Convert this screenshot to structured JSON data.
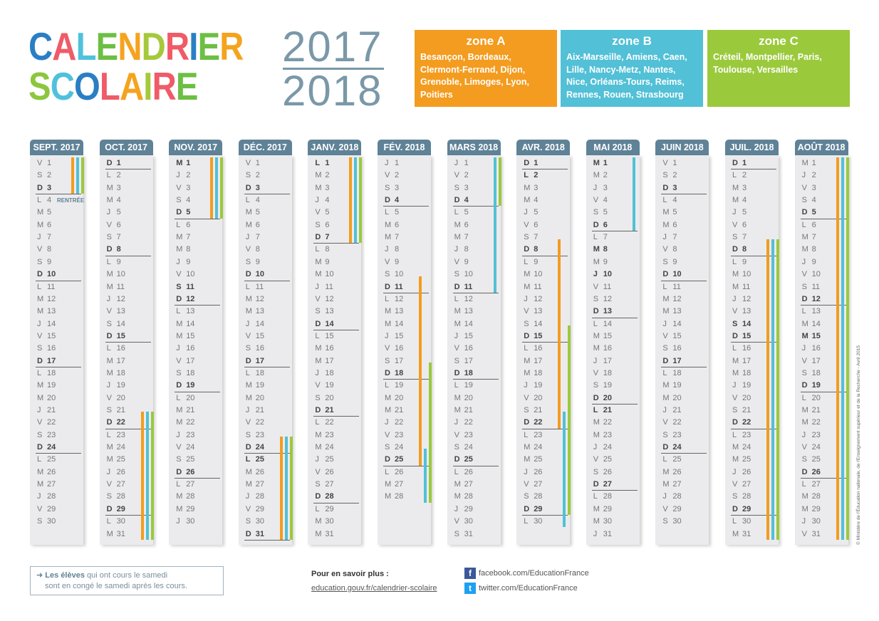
{
  "title": {
    "line1": "CALENDRIER",
    "line2": "SCOLAIRE",
    "line1_colors": [
      "#2a7fc4",
      "#ef5b68",
      "#4fc1dc",
      "#6cbf44",
      "#f5a31f",
      "#a5c93b",
      "#ef5b68",
      "#2a7fc4",
      "#6cbf44",
      "#f5a31f"
    ],
    "line2_colors": [
      "#8cc63e",
      "#4fc1dc",
      "#2a7fc4",
      "#ef5b68",
      "#f5a31f",
      "#a5c93b",
      "#ef5b68",
      "#6cbf44"
    ],
    "year1": "2017",
    "year2": "2018"
  },
  "zones": [
    {
      "name": "zone A",
      "cities": "Besançon, Bordeaux, Clermont-Ferrand, Dijon, Grenoble, Limoges, Lyon, Poitiers",
      "color": "#f39c1f"
    },
    {
      "name": "zone B",
      "cities": "Aix-Marseille, Amiens, Caen, Lille, Nancy-Metz, Nantes, Nice, Orléans-Tours, Reims, Rennes, Rouen, Strasbourg",
      "color": "#52c0d6"
    },
    {
      "name": "zone C",
      "cities": "Créteil, Montpellier, Paris, Toulouse, Versailles",
      "color": "#9bc93c"
    }
  ],
  "weekdays": [
    "L",
    "M",
    "M",
    "J",
    "V",
    "S",
    "D"
  ],
  "rentree_label": "RENTRÉE",
  "months": [
    {
      "label": "SEPT. 2017",
      "start": 4,
      "days": 30,
      "holidays": [],
      "rentree": 4,
      "vacations": [
        {
          "zone": "A",
          "from": 1,
          "to": 3
        },
        {
          "zone": "B",
          "from": 1,
          "to": 3
        },
        {
          "zone": "C",
          "from": 1,
          "to": 3
        }
      ]
    },
    {
      "label": "OCT. 2017",
      "start": 6,
      "days": 31,
      "holidays": [],
      "vacations": [
        {
          "zone": "A",
          "from": 21,
          "to": 31
        },
        {
          "zone": "B",
          "from": 21,
          "to": 31
        },
        {
          "zone": "C",
          "from": 21,
          "to": 31
        }
      ]
    },
    {
      "label": "NOV. 2017",
      "start": 2,
      "days": 30,
      "holidays": [
        1,
        11
      ],
      "vacations": [
        {
          "zone": "A",
          "from": 1,
          "to": 5
        },
        {
          "zone": "B",
          "from": 1,
          "to": 5
        },
        {
          "zone": "C",
          "from": 1,
          "to": 5
        }
      ]
    },
    {
      "label": "DÉC. 2017",
      "start": 4,
      "days": 31,
      "holidays": [
        25
      ],
      "vacations": [
        {
          "zone": "A",
          "from": 23,
          "to": 31
        },
        {
          "zone": "B",
          "from": 23,
          "to": 31
        },
        {
          "zone": "C",
          "from": 23,
          "to": 31
        }
      ]
    },
    {
      "label": "JANV. 2018",
      "start": 0,
      "days": 31,
      "holidays": [
        1
      ],
      "vacations": [
        {
          "zone": "A",
          "from": 1,
          "to": 7
        },
        {
          "zone": "B",
          "from": 1,
          "to": 7
        },
        {
          "zone": "C",
          "from": 1,
          "to": 7
        }
      ]
    },
    {
      "label": "FÉV. 2018",
      "start": 3,
      "days": 28,
      "holidays": [],
      "vacations": [
        {
          "zone": "A",
          "from": 10,
          "to": 25
        },
        {
          "zone": "B",
          "from": 24,
          "to": 28
        },
        {
          "zone": "C",
          "from": 17,
          "to": 28
        }
      ]
    },
    {
      "label": "MARS 2018",
      "start": 3,
      "days": 31,
      "holidays": [],
      "vacations": [
        {
          "zone": "B",
          "from": 1,
          "to": 11
        },
        {
          "zone": "C",
          "from": 1,
          "to": 4
        }
      ]
    },
    {
      "label": "AVR. 2018",
      "start": 6,
      "days": 30,
      "holidays": [
        2
      ],
      "vacations": [
        {
          "zone": "A",
          "from": 7,
          "to": 22
        },
        {
          "zone": "B",
          "from": 21,
          "to": 30
        },
        {
          "zone": "C",
          "from": 14,
          "to": 29
        }
      ]
    },
    {
      "label": "MAI 2018",
      "start": 1,
      "days": 31,
      "holidays": [
        1,
        8,
        10,
        21
      ],
      "vacations": [
        {
          "zone": "B",
          "from": 1,
          "to": 6
        }
      ]
    },
    {
      "label": "JUIN 2018",
      "start": 4,
      "days": 30,
      "holidays": [],
      "vacations": []
    },
    {
      "label": "JUIL. 2018",
      "start": 6,
      "days": 31,
      "holidays": [
        14
      ],
      "vacations": [
        {
          "zone": "A",
          "from": 7,
          "to": 31
        },
        {
          "zone": "B",
          "from": 7,
          "to": 31
        },
        {
          "zone": "C",
          "from": 7,
          "to": 31
        }
      ]
    },
    {
      "label": "AOÛT 2018",
      "start": 2,
      "days": 31,
      "holidays": [
        15
      ],
      "vacations": [
        {
          "zone": "A",
          "from": 1,
          "to": 31
        },
        {
          "zone": "B",
          "from": 1,
          "to": 31
        },
        {
          "zone": "C",
          "from": 1,
          "to": 31
        }
      ]
    }
  ],
  "footer": {
    "note_arrow": "➜",
    "note_bold": "Les élèves",
    "note_rest": " qui ont cours le samedi",
    "note_line2": "sont en congé le samedi après les cours.",
    "more_label": "Pour en savoir plus :",
    "link": "education.gouv.fr/calendrier-scolaire",
    "facebook": "facebook.com/EducationFrance",
    "twitter": "twitter.com/EducationFrance",
    "copyright": "© Ministère de l'Éducation nationale, de l'Enseignement supérieur et de la Recherche - Avril 2015"
  }
}
